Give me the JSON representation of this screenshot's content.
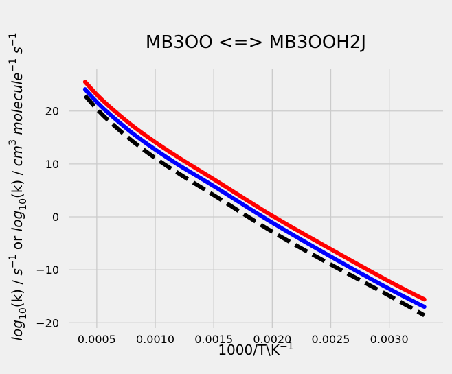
{
  "chart_data": {
    "type": "line",
    "title": "MB3OO <=> MB3OOH2J",
    "xlabel": {
      "base": "1000/T\\K",
      "sup": "−1"
    },
    "ylabel": {
      "parts": [
        {
          "t": "log",
          "i": true
        },
        {
          "t": "10",
          "sub": true
        },
        {
          "t": "(k) / "
        },
        {
          "t": "s",
          "i": true
        },
        {
          "t": "−1",
          "sup": true
        },
        {
          "t": " or "
        },
        {
          "t": "log",
          "i": true
        },
        {
          "t": "10",
          "sub": true
        },
        {
          "t": "(k) / "
        },
        {
          "t": "cm",
          "i": true
        },
        {
          "t": "3",
          "sup": true
        },
        {
          "t": " "
        },
        {
          "t": "molecule",
          "i": true
        },
        {
          "t": "−1",
          "sup": true
        },
        {
          "t": " "
        },
        {
          "t": "s",
          "i": true
        },
        {
          "t": "−1",
          "sup": true
        }
      ]
    },
    "xlim": [
      0.00026,
      0.00346
    ],
    "ylim": [
      -21,
      28
    ],
    "xticks": [
      0.0005,
      0.001,
      0.0015,
      0.002,
      0.0025,
      0.003
    ],
    "xtick_labels": [
      "0.0005",
      "0.0010",
      "0.0015",
      "0.0020",
      "0.0025",
      "0.0030"
    ],
    "yticks": [
      -20,
      -10,
      0,
      10,
      20
    ],
    "ytick_labels": [
      "−20",
      "−10",
      "0",
      "10",
      "20"
    ],
    "grid": true,
    "series": [
      {
        "color": "#ff0000",
        "style": "solid",
        "x": [
          0.0004,
          0.0005,
          0.0006,
          0.0008,
          0.001,
          0.0012,
          0.0015,
          0.002,
          0.0025,
          0.003,
          0.0033
        ],
        "y": [
          25.5,
          23.1,
          21.0,
          17.3,
          14.1,
          11.2,
          7.1,
          0.2,
          -6.1,
          -12.2,
          -15.6
        ]
      },
      {
        "color": "#0000ff",
        "style": "solid",
        "x": [
          0.0004,
          0.0005,
          0.0006,
          0.0008,
          0.001,
          0.0012,
          0.0015,
          0.002,
          0.0025,
          0.003,
          0.0033
        ],
        "y": [
          24.1,
          21.7,
          19.6,
          15.9,
          12.7,
          9.8,
          5.8,
          -1.1,
          -7.5,
          -13.6,
          -17.0
        ]
      },
      {
        "color": "#000000",
        "style": "dashed",
        "x": [
          0.0004,
          0.0005,
          0.0006,
          0.0008,
          0.001,
          0.0012,
          0.0015,
          0.002,
          0.0025,
          0.003,
          0.0033
        ],
        "y": [
          22.9,
          20.4,
          18.2,
          14.4,
          11.1,
          8.2,
          4.1,
          -2.8,
          -9.0,
          -14.9,
          -18.6
        ]
      }
    ]
  }
}
